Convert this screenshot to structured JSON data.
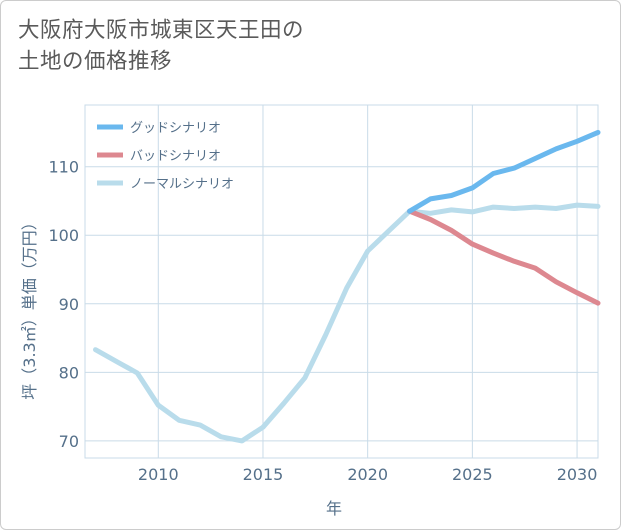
{
  "chart_data": {
    "type": "line",
    "title_lines": [
      "大阪府大阪市城東区天王田の",
      "土地の価格推移"
    ],
    "xlabel": "年",
    "ylabel": "坪（3.3㎡）単価（万円）",
    "xlim": [
      2006.5,
      2031
    ],
    "ylim": [
      67.5,
      119
    ],
    "x_ticks": [
      2010,
      2015,
      2020,
      2025,
      2030
    ],
    "y_ticks": [
      70,
      80,
      90,
      100,
      110
    ],
    "grid": true,
    "legend_position": "top-left",
    "series": [
      {
        "name": "グッドシナリオ",
        "color": "#6ab8ee",
        "x": [
          2022,
          2023,
          2024,
          2025,
          2026,
          2027,
          2028,
          2029,
          2030,
          2031
        ],
        "y": [
          103.5,
          105.3,
          105.8,
          106.9,
          109.0,
          109.8,
          111.2,
          112.6,
          113.7,
          115.0
        ]
      },
      {
        "name": "バッドシナリオ",
        "color": "#dd8890",
        "x": [
          2022,
          2023,
          2024,
          2025,
          2026,
          2027,
          2028,
          2029,
          2030,
          2031
        ],
        "y": [
          103.5,
          102.3,
          100.7,
          98.7,
          97.4,
          96.2,
          95.2,
          93.2,
          91.6,
          90.1
        ]
      },
      {
        "name": "ノーマルシナリオ",
        "color": "#b9dceb",
        "x": [
          2007,
          2008,
          2009,
          2010,
          2011,
          2012,
          2013,
          2014,
          2015,
          2016,
          2017,
          2018,
          2019,
          2020,
          2021,
          2022,
          2023,
          2024,
          2025,
          2026,
          2027,
          2028,
          2029,
          2030,
          2031
        ],
        "y": [
          83.3,
          81.6,
          79.9,
          75.2,
          73.0,
          72.3,
          70.6,
          70.0,
          72.0,
          75.5,
          79.2,
          85.5,
          92.3,
          97.7,
          100.6,
          103.5,
          103.2,
          103.7,
          103.4,
          104.1,
          103.9,
          104.1,
          103.9,
          104.4,
          104.2
        ]
      }
    ]
  }
}
